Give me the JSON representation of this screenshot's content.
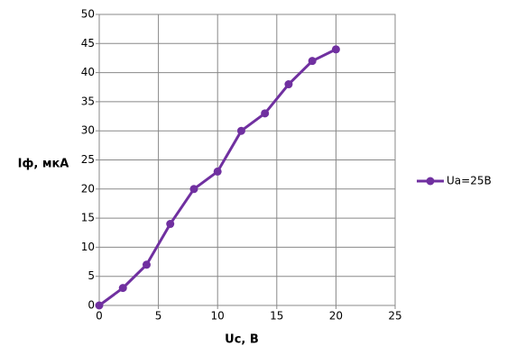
{
  "chart_data": {
    "type": "line",
    "x_label": "Uc, В",
    "y_label": "Iф, мкА",
    "x": [
      0,
      2,
      4,
      6,
      8,
      10,
      12,
      14,
      16,
      18,
      20
    ],
    "series": [
      {
        "name": "Ua=25В",
        "color": "#7030a0",
        "values": [
          0,
          3,
          7,
          14,
          20,
          23,
          30,
          33,
          38,
          42,
          44
        ]
      }
    ],
    "xlim": [
      0,
      25
    ],
    "xticks": [
      0,
      5,
      10,
      15,
      20,
      25
    ],
    "ylim": [
      0,
      50
    ],
    "yticks": [
      0,
      5,
      10,
      15,
      20,
      25,
      30,
      35,
      40,
      45,
      50
    ],
    "grid": true,
    "legend": "right"
  }
}
